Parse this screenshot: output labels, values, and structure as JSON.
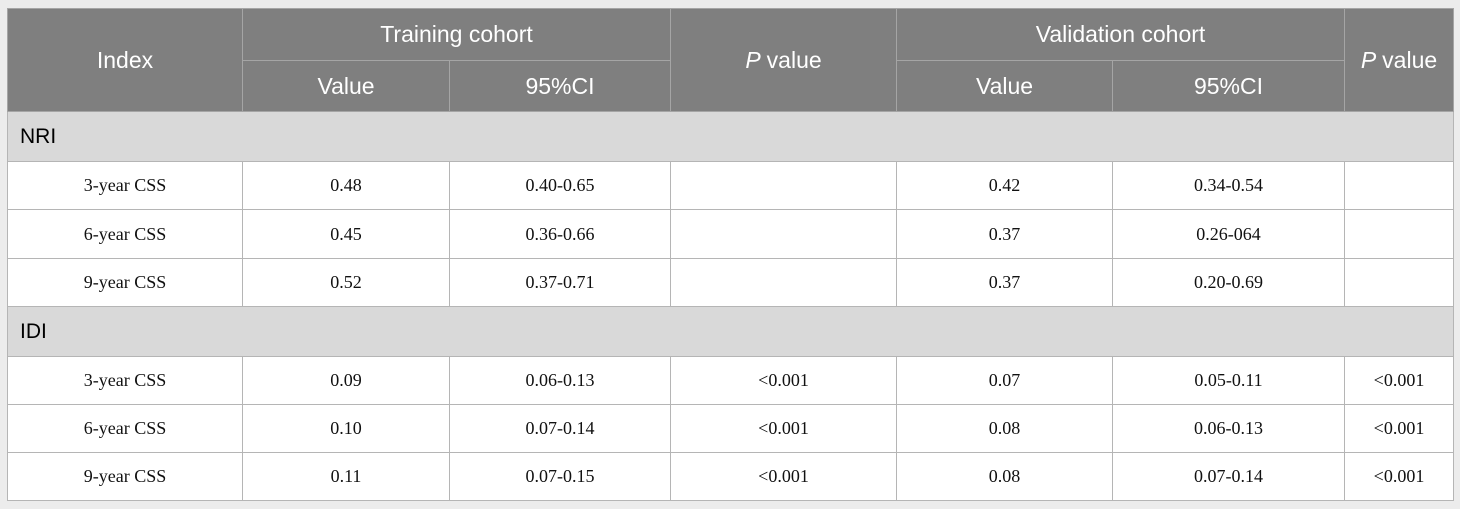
{
  "header": {
    "index": "Index",
    "training": "Training cohort",
    "validation": "Validation cohort",
    "value": "Value",
    "ci": "95%CI",
    "p_value": {
      "var": "P",
      "rest": "value"
    }
  },
  "sections": [
    {
      "title": "NRI",
      "rows": [
        {
          "label": "3-year CSS",
          "train_value": "0.48",
          "train_ci": "0.40-0.65",
          "valid_value": "0.42",
          "valid_ci": "0.34-0.54"
        },
        {
          "label": "6-year CSS",
          "train_value": "0.45",
          "train_ci": "0.36-0.66",
          "valid_value": "0.37",
          "valid_ci": "0.26-064"
        },
        {
          "label": "9-year CSS",
          "train_value": "0.52",
          "train_ci": "0.37-0.71",
          "valid_value": "0.37",
          "valid_ci": "0.20-0.69"
        }
      ]
    },
    {
      "title": "IDI",
      "rows": [
        {
          "label": "3-year CSS",
          "train_value": "0.09",
          "train_ci": "0.06-0.13",
          "train_p": "<0.001",
          "valid_value": "0.07",
          "valid_ci": "0.05-0.11",
          "valid_p": "<0.001"
        },
        {
          "label": "6-year CSS",
          "train_value": "0.10",
          "train_ci": "0.07-0.14",
          "train_p": "<0.001",
          "valid_value": "0.08",
          "valid_ci": "0.06-0.13",
          "valid_p": "<0.001"
        },
        {
          "label": "9-year CSS",
          "train_value": "0.11",
          "train_ci": "0.07-0.15",
          "train_p": "<0.001",
          "valid_value": "0.08",
          "valid_ci": "0.07-0.14",
          "valid_p": "<0.001"
        }
      ]
    }
  ]
}
